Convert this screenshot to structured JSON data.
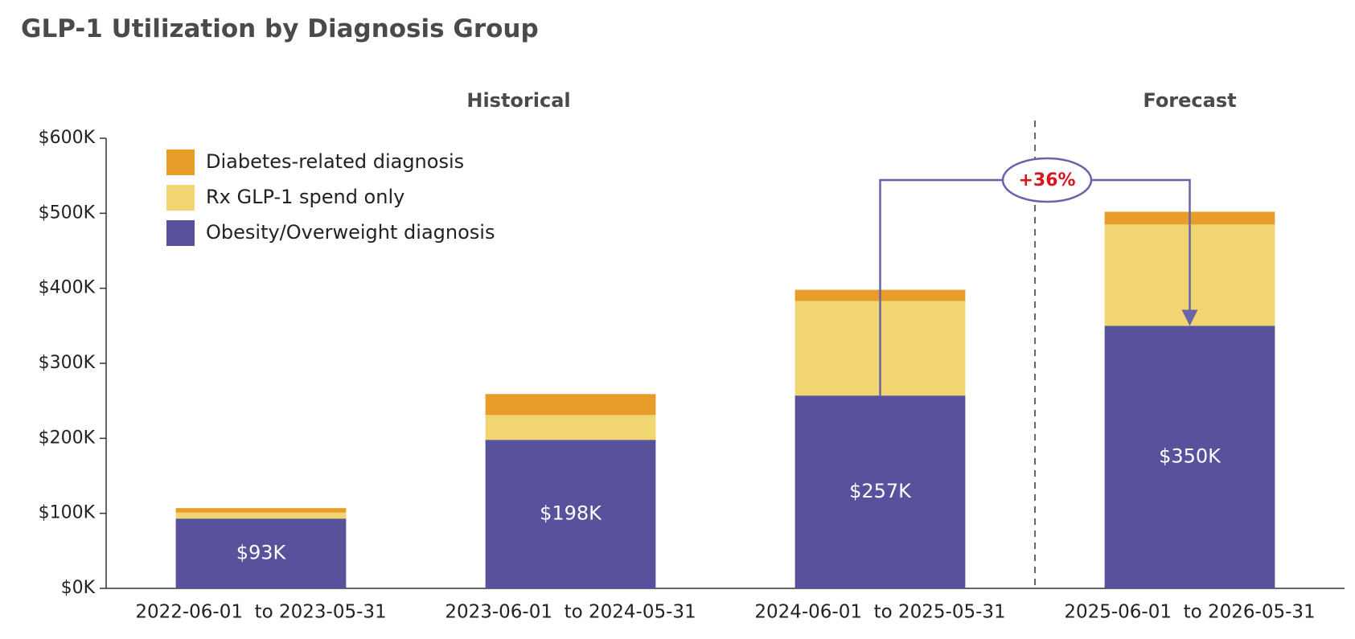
{
  "chart_data": {
    "type": "stacked_bar",
    "title": "GLP-1 Utilization by Diagnosis Group",
    "sections": [
      "Historical",
      "Forecast"
    ],
    "annotations": [
      "+36%"
    ],
    "categories": [
      "2022-06-01  to 2023-05-31",
      "2023-06-01  to 2024-05-31",
      "2024-06-01  to 2025-05-31",
      "2025-06-01  to 2026-05-31"
    ],
    "series": [
      {
        "name": "Obesity/Overweight diagnosis",
        "color": "#58519b",
        "values": [
          93000,
          198000,
          257000,
          350000
        ],
        "value_labels": [
          "$93K",
          "$198K",
          "$257K",
          "$350K"
        ]
      },
      {
        "name": "Rx GLP-1 spend only",
        "color": "#f0d571",
        "values": [
          8000,
          33000,
          126000,
          135000
        ]
      },
      {
        "name": "Diabetes-related diagnosis",
        "color": "#e89c2a",
        "values": [
          6000,
          28000,
          15000,
          17000
        ]
      }
    ],
    "ylim": [
      0,
      600000
    ],
    "yticks": [
      {
        "value": 0,
        "label": "$0K"
      },
      {
        "value": 100000,
        "label": "$100K"
      },
      {
        "value": 200000,
        "label": "$200K"
      },
      {
        "value": 300000,
        "label": "$300K"
      },
      {
        "value": 400000,
        "label": "$400K"
      },
      {
        "value": 500000,
        "label": "$500K"
      },
      {
        "value": 600000,
        "label": "$600K"
      }
    ],
    "legend": "upper left"
  }
}
